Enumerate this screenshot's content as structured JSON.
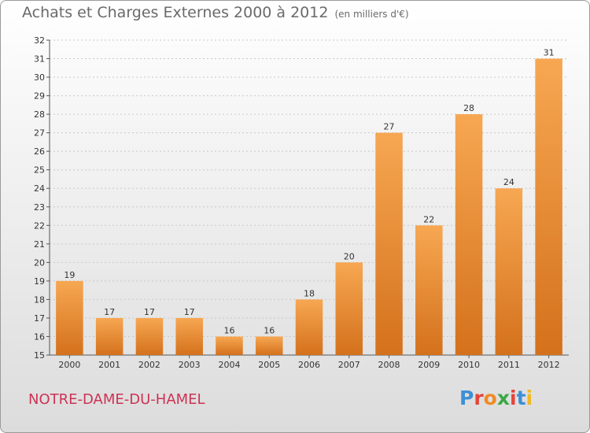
{
  "header": {
    "title": "Achats et Charges Externes 2000 à 2012",
    "subtitle": "(en milliers d'€)"
  },
  "footer": {
    "location": "NOTRE-DAME-DU-HAMEL",
    "logo_letters": [
      {
        "ch": "P",
        "color": "#3d8fd6"
      },
      {
        "ch": "r",
        "color": "#e5443a"
      },
      {
        "ch": "o",
        "color": "#f08a24"
      },
      {
        "ch": "x",
        "color": "#3aa845"
      },
      {
        "ch": "i",
        "color": "#e5443a"
      },
      {
        "ch": "t",
        "color": "#3d8fd6"
      },
      {
        "ch": "i",
        "color": "#f0b824"
      }
    ]
  },
  "chart_data": {
    "type": "bar",
    "categories": [
      "2000",
      "2001",
      "2002",
      "2003",
      "2004",
      "2005",
      "2006",
      "2007",
      "2008",
      "2009",
      "2010",
      "2011",
      "2012"
    ],
    "values": [
      19,
      17,
      17,
      17,
      16,
      16,
      18,
      20,
      27,
      22,
      28,
      24,
      31
    ],
    "title": "Achats et Charges Externes 2000 à 2012",
    "subtitle": "(en milliers d'€)",
    "xlabel": "",
    "ylabel": "",
    "ylim": [
      15,
      32
    ],
    "yticks": [
      15,
      16,
      17,
      18,
      19,
      20,
      21,
      22,
      23,
      24,
      25,
      26,
      27,
      28,
      29,
      30,
      31,
      32
    ],
    "grid": true,
    "bar_color_light": "#f7a752",
    "bar_color_dark": "#d4711c"
  }
}
